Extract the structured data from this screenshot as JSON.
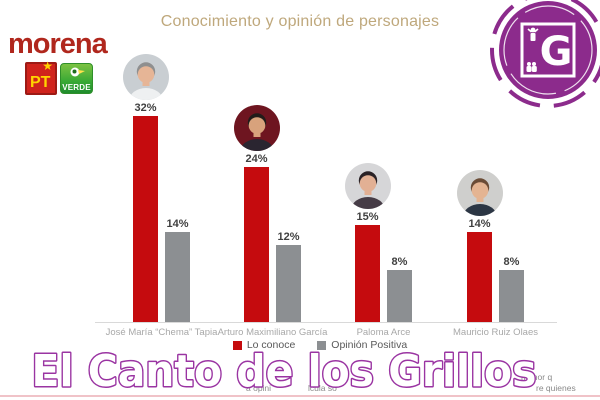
{
  "title": "Conocimiento y opinión de personajes",
  "brand": {
    "morena_label": "morena",
    "pt_label": "PT",
    "verde_label": "VERDE",
    "morena_color": "#b0271d"
  },
  "station_logo": {
    "letter": "G",
    "color": "#8c2b8c"
  },
  "chart_data": {
    "type": "bar",
    "title": "Conocimiento y opinión de personajes",
    "categories": [
      "José María “Chema” Tapia",
      "Arturo Maximiliano García",
      "Paloma Arce",
      "Mauricio Ruiz Olaes"
    ],
    "series": [
      {
        "name": "Lo conoce",
        "color": "#c50b0e",
        "values": [
          32,
          24,
          15,
          14
        ]
      },
      {
        "name": "Opinión Positiva",
        "color": "#8c8f92",
        "values": [
          14,
          12,
          8,
          8
        ]
      }
    ],
    "value_suffix": "%",
    "ylim": [
      0,
      34
    ],
    "grid": false,
    "legend_position": "bottom",
    "value_label_color": "#3f3f3f",
    "category_label_color": "#a8a8a8"
  },
  "avatars": [
    {
      "bg": "#c9ced2",
      "hair": "#8f8f8f",
      "skin": "#e6b596",
      "shirt": "#eef0f1"
    },
    {
      "bg": "#6e1520",
      "hair": "#221c1a",
      "skin": "#d8a27c",
      "shirt": "#2a2530"
    },
    {
      "bg": "#d6d6d8",
      "hair": "#2a2226",
      "skin": "#e2b094",
      "shirt": "#463c46"
    },
    {
      "bg": "#cfcfcd",
      "hair": "#6b4c36",
      "skin": "#e4b492",
      "shirt": "#2c3644"
    }
  ],
  "watermark": {
    "text": "El Canto de los Grillos",
    "fill": "#ffffff",
    "outline": "#9a34a2"
  },
  "footnote": {
    "f1": "menor q",
    "f2": "a opini",
    "f3": "lcula so",
    "f4": "re quienes"
  }
}
